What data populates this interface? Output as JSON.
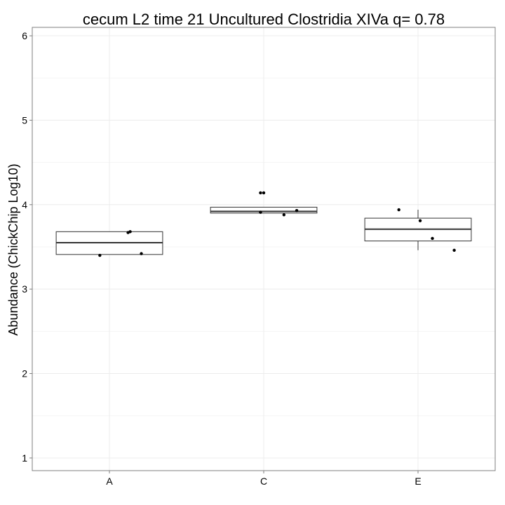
{
  "chart_data": {
    "type": "box",
    "title": "cecum L2 time 21 Uncultured Clostridia XIVa q= 0.78",
    "xlabel": "",
    "ylabel": "Abundance (ChickChip Log10)",
    "ylim": [
      0.85,
      6.1
    ],
    "yticks": [
      1,
      2,
      3,
      4,
      5,
      6
    ],
    "grid": true,
    "categories": [
      "A",
      "C",
      "E"
    ],
    "boxes": [
      {
        "category": "A",
        "q1": 3.41,
        "median": 3.55,
        "q3": 3.68,
        "whisker_low": 3.41,
        "whisker_high": 3.68,
        "points": [
          3.4,
          3.67,
          3.68,
          3.42
        ]
      },
      {
        "category": "C",
        "q1": 3.9,
        "median": 3.92,
        "q3": 3.97,
        "whisker_low": 3.9,
        "whisker_high": 3.97,
        "points": [
          4.14,
          4.14,
          3.91,
          3.88,
          3.93
        ]
      },
      {
        "category": "E",
        "q1": 3.57,
        "median": 3.71,
        "q3": 3.84,
        "whisker_low": 3.46,
        "whisker_high": 3.94,
        "points": [
          3.94,
          3.81,
          3.6,
          3.46
        ]
      }
    ]
  }
}
